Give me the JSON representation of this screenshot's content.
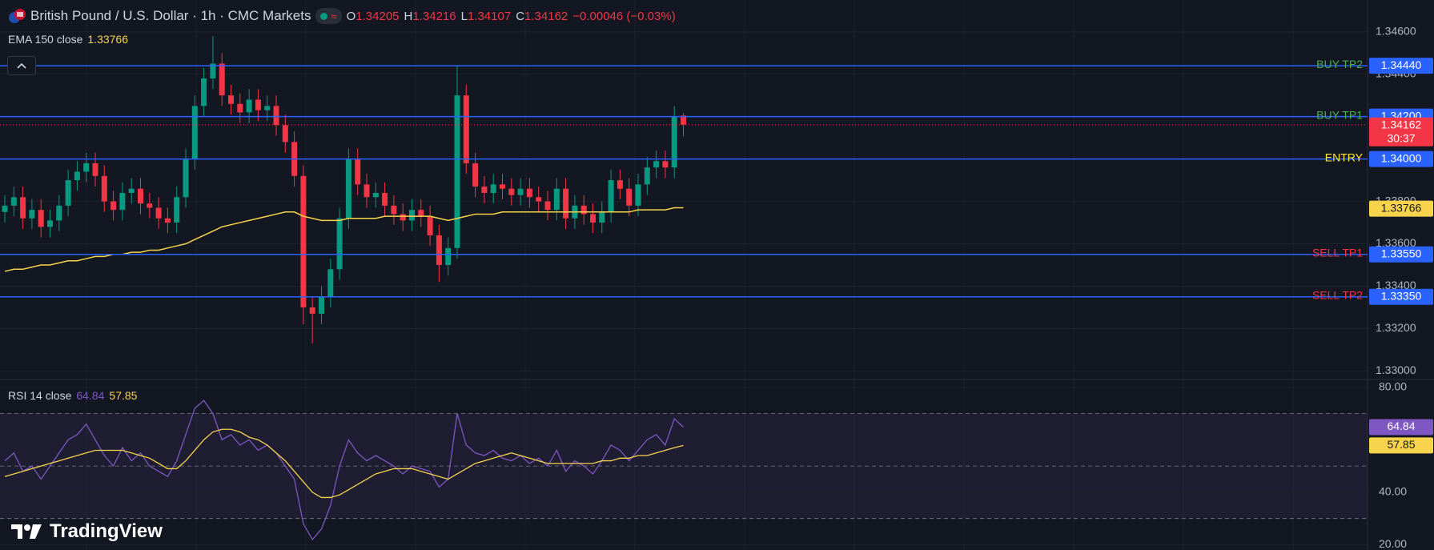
{
  "logo": "TradingView",
  "chart_data": [
    {
      "type": "candlestick",
      "title": "British Pound / U.S. Dollar · 1h · CMC Markets",
      "ohlc_labels": [
        "O",
        "H",
        "L",
        "C"
      ],
      "change_label": "−0.00046 (−0.03%)",
      "up_color": "#089981",
      "down_color": "#f23645",
      "open": [
        1.3375,
        1.3378,
        1.3382,
        1.3372,
        1.3376,
        1.3368,
        1.3371,
        1.3378,
        1.339,
        1.3394,
        1.3398,
        1.3392,
        1.338,
        1.3376,
        1.3384,
        1.3386,
        1.3379,
        1.3377,
        1.3372,
        1.337,
        1.3382,
        1.34,
        1.3425,
        1.3438,
        1.3445,
        1.343,
        1.3426,
        1.3422,
        1.3428,
        1.3423,
        1.3425,
        1.3416,
        1.3408,
        1.3392,
        1.333,
        1.3327,
        1.3335,
        1.3348,
        1.3372,
        1.34,
        1.3388,
        1.3382,
        1.3384,
        1.3378,
        1.3374,
        1.3371,
        1.3376,
        1.3373,
        1.3364,
        1.335,
        1.3358,
        1.343,
        1.3398,
        1.3387,
        1.3384,
        1.3388,
        1.3386,
        1.3383,
        1.3386,
        1.3382,
        1.338,
        1.3376,
        1.3386,
        1.3372,
        1.3378,
        1.3374,
        1.337,
        1.3375,
        1.339,
        1.3386,
        1.3378,
        1.3388,
        1.3396,
        1.3399,
        1.3396,
        1.34205
      ],
      "high": [
        1.3383,
        1.3387,
        1.3387,
        1.3381,
        1.3381,
        1.3376,
        1.3383,
        1.3395,
        1.3399,
        1.3403,
        1.3403,
        1.3397,
        1.3385,
        1.3389,
        1.3391,
        1.3391,
        1.3384,
        1.3382,
        1.3377,
        1.3387,
        1.3405,
        1.343,
        1.3443,
        1.3458,
        1.345,
        1.3435,
        1.3431,
        1.3433,
        1.3433,
        1.343,
        1.343,
        1.3421,
        1.3413,
        1.3397,
        1.3335,
        1.334,
        1.3353,
        1.3377,
        1.3405,
        1.3405,
        1.3393,
        1.3389,
        1.3389,
        1.3383,
        1.3379,
        1.3381,
        1.3381,
        1.3378,
        1.3369,
        1.3363,
        1.3444,
        1.3435,
        1.3403,
        1.3392,
        1.3393,
        1.3393,
        1.3391,
        1.3391,
        1.3391,
        1.3387,
        1.3385,
        1.3391,
        1.3391,
        1.3383,
        1.3383,
        1.3379,
        1.338,
        1.3395,
        1.3395,
        1.3391,
        1.3393,
        1.3401,
        1.3404,
        1.3404,
        1.3425,
        1.34216
      ],
      "low": [
        1.337,
        1.3373,
        1.3367,
        1.3367,
        1.3363,
        1.3363,
        1.3366,
        1.3373,
        1.3385,
        1.3389,
        1.3387,
        1.3375,
        1.3371,
        1.3371,
        1.3379,
        1.3374,
        1.3372,
        1.3367,
        1.3365,
        1.3365,
        1.3377,
        1.3395,
        1.342,
        1.3433,
        1.3425,
        1.3421,
        1.3417,
        1.3417,
        1.3418,
        1.3418,
        1.3411,
        1.3403,
        1.3387,
        1.3322,
        1.3313,
        1.3322,
        1.333,
        1.3343,
        1.3367,
        1.3383,
        1.3377,
        1.3377,
        1.3373,
        1.3369,
        1.3366,
        1.3366,
        1.3368,
        1.3359,
        1.3342,
        1.3345,
        1.3353,
        1.3393,
        1.3382,
        1.3379,
        1.3379,
        1.3381,
        1.3378,
        1.3378,
        1.3377,
        1.3375,
        1.3371,
        1.3371,
        1.3367,
        1.3367,
        1.3369,
        1.3365,
        1.3365,
        1.337,
        1.3381,
        1.3373,
        1.3373,
        1.3383,
        1.3391,
        1.3391,
        1.3391,
        1.34107
      ],
      "close": [
        1.3378,
        1.3382,
        1.3372,
        1.3376,
        1.3368,
        1.3371,
        1.3378,
        1.339,
        1.3394,
        1.3398,
        1.3392,
        1.338,
        1.3376,
        1.3384,
        1.3386,
        1.3379,
        1.3377,
        1.3372,
        1.337,
        1.3382,
        1.34,
        1.3425,
        1.3438,
        1.3445,
        1.343,
        1.3426,
        1.3422,
        1.3428,
        1.3423,
        1.3425,
        1.3416,
        1.3408,
        1.3392,
        1.333,
        1.3327,
        1.3335,
        1.3348,
        1.3372,
        1.34,
        1.3388,
        1.3382,
        1.3384,
        1.3378,
        1.3374,
        1.3371,
        1.3376,
        1.3373,
        1.3364,
        1.335,
        1.3358,
        1.343,
        1.3398,
        1.3387,
        1.3384,
        1.3388,
        1.3386,
        1.3383,
        1.3386,
        1.3382,
        1.338,
        1.3376,
        1.3386,
        1.3372,
        1.3378,
        1.3374,
        1.337,
        1.3375,
        1.339,
        1.3386,
        1.3378,
        1.3388,
        1.3396,
        1.3399,
        1.3396,
        1.342,
        1.34162
      ],
      "countdown": "30:37",
      "indicator": {
        "name": "EMA 150 close",
        "value": 1.33766,
        "color": "#f7d44c",
        "values": [
          1.3347,
          1.3348,
          1.3348,
          1.3349,
          1.335,
          1.335,
          1.3351,
          1.3352,
          1.3352,
          1.3353,
          1.3354,
          1.3354,
          1.3355,
          1.3355,
          1.3356,
          1.3356,
          1.3357,
          1.3357,
          1.3358,
          1.3359,
          1.336,
          1.3362,
          1.3364,
          1.3366,
          1.3368,
          1.3369,
          1.337,
          1.3371,
          1.3372,
          1.3373,
          1.3374,
          1.3375,
          1.3375,
          1.3373,
          1.3372,
          1.3371,
          1.3371,
          1.3371,
          1.3372,
          1.3372,
          1.3372,
          1.3372,
          1.3373,
          1.3373,
          1.3373,
          1.3373,
          1.3373,
          1.3373,
          1.3372,
          1.3371,
          1.3372,
          1.3373,
          1.3374,
          1.3374,
          1.3374,
          1.3375,
          1.3375,
          1.3375,
          1.3375,
          1.3375,
          1.3375,
          1.3375,
          1.3375,
          1.3375,
          1.3375,
          1.3375,
          1.3375,
          1.3375,
          1.3375,
          1.3375,
          1.3376,
          1.3376,
          1.3376,
          1.3376,
          1.3377,
          1.3377
        ]
      },
      "levels": [
        {
          "name": "BUY TP2",
          "value": 1.3444,
          "label": "1.34440",
          "text_color": "#4caf50"
        },
        {
          "name": "BUY TP1",
          "value": 1.342,
          "label": "1.34200",
          "text_color": "#4caf50"
        },
        {
          "name": "ENTRY",
          "value": 1.34,
          "label": "1.34000",
          "text_color": "#ffeb3b"
        },
        {
          "name": "SELL TP1",
          "value": 1.3355,
          "label": "1.33550",
          "text_color": "#f23645"
        },
        {
          "name": "SELL TP2",
          "value": 1.3335,
          "label": "1.33350",
          "text_color": "#f23645"
        }
      ],
      "level_color": "#2962ff",
      "ylim": [
        1.3296,
        1.3475
      ],
      "yticks": [
        {
          "value": 1.346,
          "label": "1.34600"
        },
        {
          "value": 1.344,
          "label": "1.34400"
        },
        {
          "value": 1.342,
          "label": "1.34200"
        },
        {
          "value": 1.34,
          "label": "1.34000"
        },
        {
          "value": 1.338,
          "label": "1.33800"
        },
        {
          "value": 1.336,
          "label": "1.33600"
        },
        {
          "value": 1.334,
          "label": "1.33400"
        },
        {
          "value": 1.332,
          "label": "1.33200"
        },
        {
          "value": 1.33,
          "label": "1.33000"
        }
      ],
      "grid": true
    },
    {
      "type": "line",
      "title": "RSI 14 close",
      "series": [
        {
          "color": "#7e57c2",
          "values": [
            52,
            55,
            48,
            50,
            45,
            50,
            55,
            60,
            62,
            66,
            60,
            54,
            50,
            57,
            52,
            55,
            50,
            48,
            46,
            52,
            62,
            72,
            75,
            70,
            60,
            62,
            58,
            60,
            56,
            58,
            55,
            50,
            45,
            28,
            22,
            26,
            35,
            50,
            60,
            55,
            52,
            54,
            52,
            50,
            47,
            50,
            49,
            48,
            42,
            45,
            70,
            58,
            55,
            54,
            56,
            53,
            52,
            54,
            51,
            53,
            50,
            56,
            48,
            52,
            50,
            47,
            52,
            58,
            56,
            52,
            56,
            60,
            62,
            58,
            68,
            64.84
          ]
        },
        {
          "color": "#f7d44c",
          "values": [
            46,
            47,
            48,
            49,
            50,
            51,
            52,
            53,
            54,
            55,
            56,
            56,
            56,
            56,
            55,
            54,
            53,
            51,
            49,
            49,
            52,
            56,
            60,
            63,
            64,
            64,
            63,
            61,
            60,
            58,
            55,
            52,
            48,
            44,
            40,
            38,
            38,
            39,
            41,
            43,
            45,
            47,
            48,
            49,
            49,
            49,
            48,
            47,
            46,
            45,
            47,
            49,
            51,
            52,
            53,
            54,
            55,
            54,
            53,
            52,
            51,
            51,
            51,
            51,
            51,
            51,
            52,
            52,
            53,
            53,
            54,
            54,
            55,
            56,
            57,
            57.85
          ]
        }
      ],
      "bands": [
        70,
        50,
        30
      ],
      "ylim": [
        18,
        83
      ],
      "yticks": [
        {
          "value": 80,
          "label": "80.00"
        },
        {
          "value": 40,
          "label": "40.00"
        },
        {
          "value": 20,
          "label": "20.00"
        }
      ],
      "grid": true
    }
  ]
}
